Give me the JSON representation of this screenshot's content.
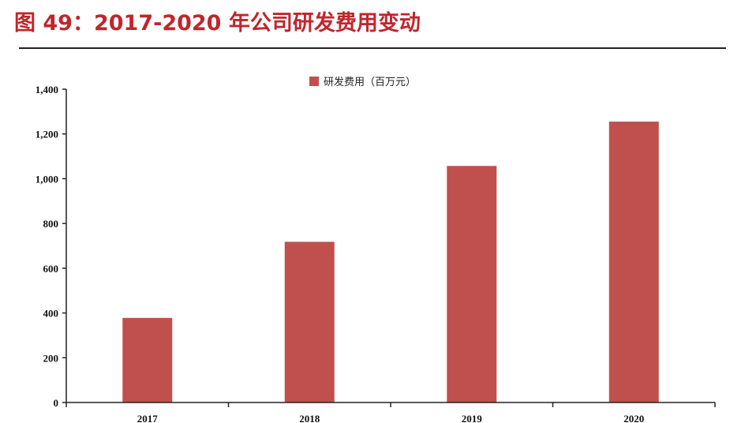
{
  "title": "图 49：2017-2020 年公司研发费用变动",
  "colors": {
    "title": "#c0262c",
    "bar": "#c0504d",
    "axis": "#222222"
  },
  "chart_data": {
    "type": "bar",
    "categories": [
      "2017",
      "2018",
      "2019",
      "2020"
    ],
    "series": [
      {
        "name": "研发费用（百万元）",
        "values": [
          378,
          718,
          1057,
          1255
        ]
      }
    ],
    "ylim": [
      0,
      1400
    ],
    "y_ticks": [
      0,
      200,
      400,
      600,
      800,
      1000,
      1200,
      1400
    ],
    "y_tick_labels": [
      "0",
      "200",
      "400",
      "600",
      "800",
      "1,000",
      "1,200",
      "1,400"
    ],
    "xlabel": "",
    "ylabel": "",
    "grid": false,
    "legend_position": "top-center"
  }
}
